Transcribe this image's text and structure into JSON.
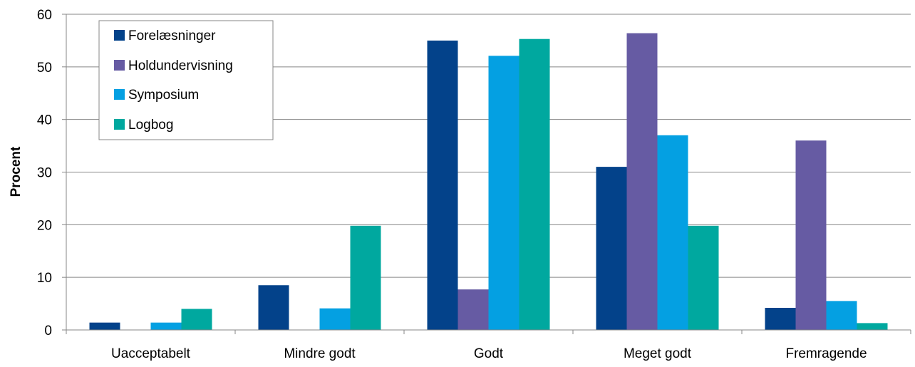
{
  "chart_data": {
    "type": "bar",
    "title": "",
    "xlabel": "",
    "ylabel": "Procent",
    "ylim": [
      0,
      60
    ],
    "yticks": [
      0,
      10,
      20,
      30,
      40,
      50,
      60
    ],
    "grid": true,
    "legend_position": "top-left",
    "categories": [
      "Uacceptabelt",
      "Mindre godt",
      "Godt",
      "Meget godt",
      "Fremragende"
    ],
    "series": [
      {
        "name": "Forelæsninger",
        "color": "#03428A",
        "values": [
          1.4,
          8.5,
          55.0,
          31.0,
          4.2
        ]
      },
      {
        "name": "Holdundervisning",
        "color": "#665BA3",
        "values": [
          0,
          0,
          7.7,
          56.4,
          36.0
        ]
      },
      {
        "name": "Symposium",
        "color": "#04A0E2",
        "values": [
          1.4,
          4.1,
          52.1,
          37.0,
          5.5
        ]
      },
      {
        "name": "Logbog",
        "color": "#00A89F",
        "values": [
          4.0,
          19.8,
          55.3,
          19.8,
          1.3
        ]
      }
    ]
  }
}
